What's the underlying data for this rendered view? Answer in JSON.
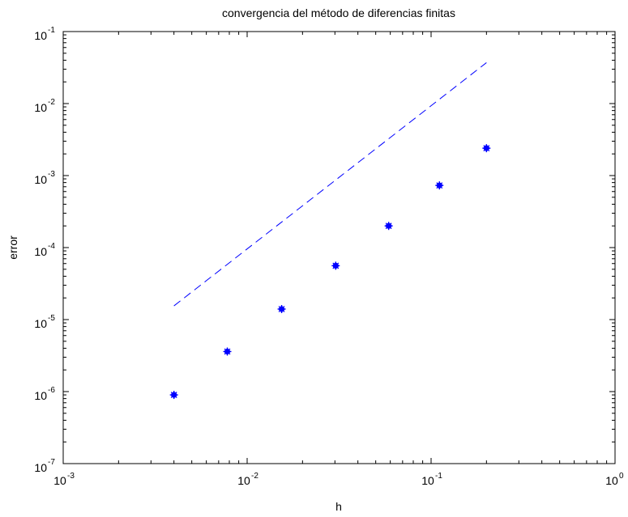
{
  "chart_data": {
    "type": "scatter",
    "title": "convergencia del método de diferencias finitas",
    "xlabel": "h",
    "ylabel": "error",
    "xscale": "log",
    "yscale": "log",
    "xlim": [
      0.001,
      1
    ],
    "ylim": [
      1e-07,
      0.1
    ],
    "grid": false,
    "x_ticks": [
      {
        "value": 0.001,
        "base": "10",
        "exp": "-3"
      },
      {
        "value": 0.01,
        "base": "10",
        "exp": "-2"
      },
      {
        "value": 0.1,
        "base": "10",
        "exp": "-1"
      },
      {
        "value": 1,
        "base": "10",
        "exp": "0"
      }
    ],
    "y_ticks": [
      {
        "value": 1e-07,
        "base": "10",
        "exp": "-7"
      },
      {
        "value": 1e-06,
        "base": "10",
        "exp": "-6"
      },
      {
        "value": 1e-05,
        "base": "10",
        "exp": "-5"
      },
      {
        "value": 0.0001,
        "base": "10",
        "exp": "-4"
      },
      {
        "value": 0.001,
        "base": "10",
        "exp": "-3"
      },
      {
        "value": 0.01,
        "base": "10",
        "exp": "-2"
      },
      {
        "value": 0.1,
        "base": "10",
        "exp": "-1"
      }
    ],
    "series": [
      {
        "style": "markers",
        "color": "#0000ff",
        "x": [
          0.004,
          0.0078,
          0.0154,
          0.0303,
          0.0588,
          0.111,
          0.2
        ],
        "y": [
          9e-07,
          3.6e-06,
          1.4e-05,
          5.6e-05,
          0.0002,
          0.00073,
          0.0024
        ]
      },
      {
        "style": "dashed-line",
        "color": "#0000ff",
        "x": [
          0.004,
          0.2
        ],
        "y": [
          1.55e-05,
          0.037
        ]
      }
    ]
  }
}
